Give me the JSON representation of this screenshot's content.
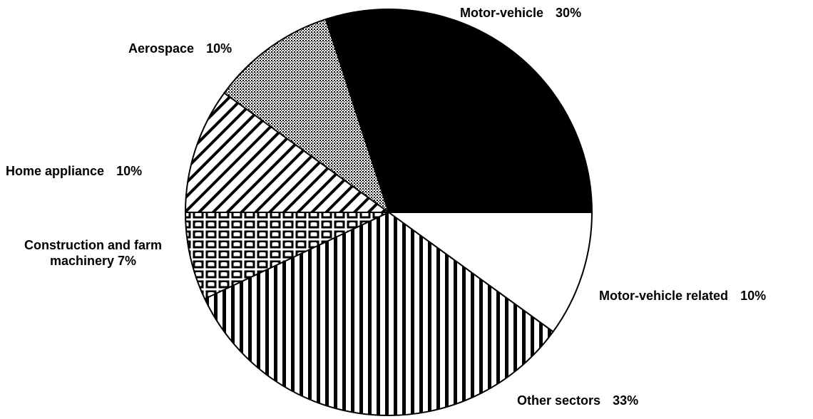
{
  "chart_data": {
    "type": "pie",
    "categories": [
      "Motor-vehicle related",
      "Other sectors",
      "Construction and farm machinery",
      "Home appliance",
      "Aerospace",
      "Motor-vehicle"
    ],
    "values": [
      10,
      33,
      7,
      10,
      10,
      30
    ],
    "value_labels": [
      "10%",
      "33%",
      "7%",
      "10%",
      "10%",
      "30%"
    ],
    "colors": [
      "#ffffff",
      "url(#pat-vstripes)",
      "url(#pat-grid)",
      "url(#pat-diag)",
      "url(#pat-dots)",
      "#000000"
    ]
  }
}
